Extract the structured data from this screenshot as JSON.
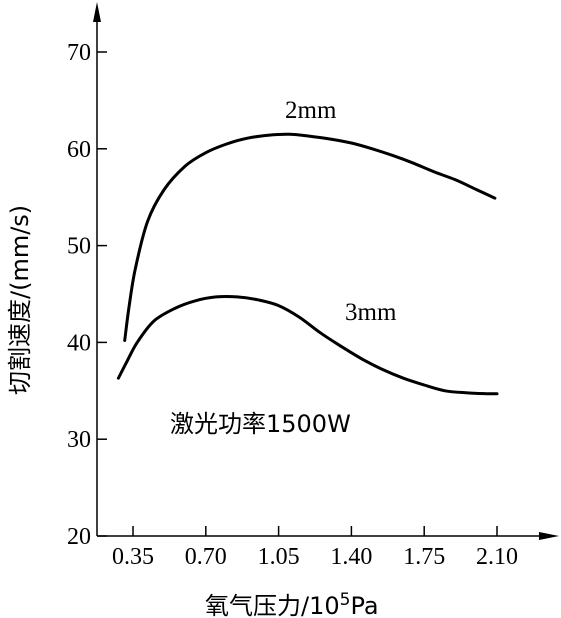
{
  "chart_data": {
    "type": "line",
    "title": "",
    "xlabel": "氧气压力/10⁵Pa",
    "ylabel": "切割速度/(mm/s)",
    "xlim": [
      0.35,
      2.1
    ],
    "ylim": [
      20,
      70
    ],
    "x_ticks": [
      "0.35",
      "0.70",
      "1.05",
      "1.40",
      "1.75",
      "2.10"
    ],
    "x_tick_values": [
      0.35,
      0.7,
      1.05,
      1.4,
      1.75,
      2.1
    ],
    "y_ticks": [
      20,
      30,
      40,
      50,
      60,
      70
    ],
    "grid": false,
    "series": [
      {
        "name": "2mm",
        "x": [
          0.31,
          0.33,
          0.36,
          0.42,
          0.5,
          0.6,
          0.7,
          0.8,
          0.9,
          1.0,
          1.1,
          1.2,
          1.3,
          1.4,
          1.5,
          1.6,
          1.7,
          1.8,
          1.9,
          2.0,
          2.09
        ],
        "values": [
          40.2,
          43.5,
          47.5,
          52.5,
          55.8,
          58.2,
          59.6,
          60.5,
          61.1,
          61.4,
          61.5,
          61.3,
          61.0,
          60.6,
          60.0,
          59.3,
          58.5,
          57.6,
          56.8,
          55.8,
          54.9
        ]
      },
      {
        "name": "3mm",
        "x": [
          0.28,
          0.32,
          0.37,
          0.45,
          0.55,
          0.65,
          0.75,
          0.85,
          0.95,
          1.05,
          1.15,
          1.25,
          1.35,
          1.45,
          1.55,
          1.65,
          1.75,
          1.85,
          1.95,
          2.05,
          2.1
        ],
        "values": [
          36.3,
          38.0,
          40.0,
          42.2,
          43.5,
          44.3,
          44.7,
          44.7,
          44.4,
          43.8,
          42.6,
          41.0,
          39.6,
          38.3,
          37.2,
          36.3,
          35.6,
          35.0,
          34.8,
          34.7,
          34.7
        ]
      }
    ],
    "annotations": [
      "激光功率1500W"
    ]
  }
}
